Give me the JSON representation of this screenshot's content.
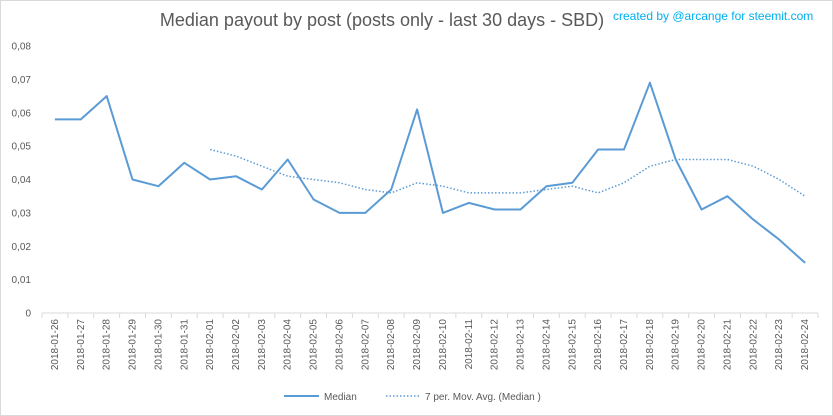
{
  "chart_data": {
    "type": "line",
    "title": "Median payout by post (posts only - last 30 days - SBD)",
    "credit": "created by @arcange for steemit.com",
    "categories": [
      "2018-01-26",
      "2018-01-27",
      "2018-01-28",
      "2018-01-29",
      "2018-01-30",
      "2018-01-31",
      "2018-02-01",
      "2018-02-02",
      "2018-02-03",
      "2018-02-04",
      "2018-02-05",
      "2018-02-06",
      "2018-02-07",
      "2018-02-08",
      "2018-02-09",
      "2018-02-10",
      "2018-02-11",
      "2018-02-12",
      "2018-02-13",
      "2018-02-14",
      "2018-02-15",
      "2018-02-16",
      "2018-02-17",
      "2018-02-18",
      "2018-02-19",
      "2018-02-20",
      "2018-02-21",
      "2018-02-22",
      "2018-02-23",
      "2018-02-24"
    ],
    "y_ticks": [
      "0",
      "0,01",
      "0,02",
      "0,03",
      "0,04",
      "0,05",
      "0,06",
      "0,07",
      "0,08"
    ],
    "ylim": [
      0,
      0.08
    ],
    "grid": false,
    "legend_position": "bottom",
    "colors": {
      "line": "#5b9bd5",
      "axis": "#d9d9d9",
      "text": "#595959",
      "credit": "#00b0f0"
    },
    "series": [
      {
        "name": "Median",
        "style": "solid",
        "values": [
          0.058,
          0.058,
          0.065,
          0.04,
          0.038,
          0.045,
          0.04,
          0.041,
          0.037,
          0.046,
          0.034,
          0.03,
          0.03,
          0.037,
          0.061,
          0.03,
          0.033,
          0.031,
          0.031,
          0.038,
          0.039,
          0.049,
          0.049,
          0.069,
          0.046,
          0.031,
          0.035,
          0.028,
          0.022,
          0.015
        ]
      },
      {
        "name": "7 per. Mov. Avg. (Median )",
        "style": "dotted",
        "values": [
          null,
          null,
          null,
          null,
          null,
          null,
          0.049,
          0.047,
          0.044,
          0.041,
          0.04,
          0.039,
          0.037,
          0.036,
          0.039,
          0.038,
          0.036,
          0.036,
          0.036,
          0.037,
          0.038,
          0.036,
          0.039,
          0.044,
          0.046,
          0.046,
          0.046,
          0.044,
          0.04,
          0.035
        ]
      }
    ]
  }
}
